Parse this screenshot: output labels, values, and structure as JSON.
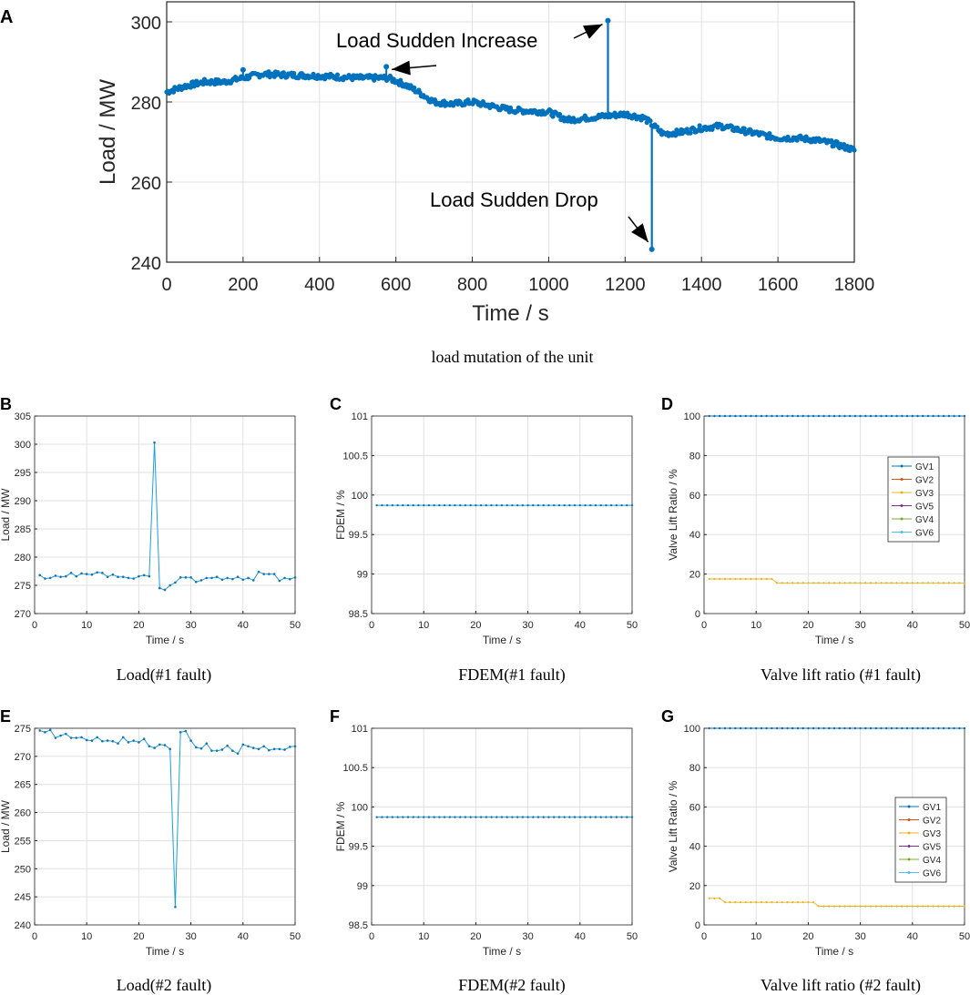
{
  "captions": {
    "a": "load mutation of the unit",
    "b": "Load(#1 fault)",
    "c": "FDEM(#1 fault)",
    "d": "Valve lift ratio (#1 fault)",
    "e": "Load(#2 fault)",
    "f": "FDEM(#2 fault)",
    "g": "Valve lift ratio (#2 fault)"
  },
  "colors": {
    "main": "#0072BD",
    "load_small": "#1f9fe0",
    "fdem": "#1f9fe0",
    "grid": "#e1e1e1",
    "gv": [
      "#0072BD",
      "#D95319",
      "#EDB120",
      "#7E2F8E",
      "#77AC30",
      "#4DBEEE"
    ]
  },
  "chart_data": [
    {
      "id": "A",
      "type": "line",
      "panel_label": "A",
      "title": "",
      "xlabel": "Time / s",
      "ylabel": "Load / MW",
      "xlim": [
        0,
        1800
      ],
      "ylim": [
        240,
        305
      ],
      "xticks": [
        0,
        200,
        400,
        600,
        800,
        1000,
        1200,
        1400,
        1600,
        1800
      ],
      "yticks": [
        240,
        260,
        280,
        300
      ],
      "grid": true,
      "series": [
        {
          "name": "Load",
          "trend": [
            [
              0,
              282.5
            ],
            [
              50,
              284
            ],
            [
              100,
              285
            ],
            [
              150,
              285
            ],
            [
              200,
              286
            ],
            [
              250,
              287
            ],
            [
              300,
              286.8
            ],
            [
              400,
              286.5
            ],
            [
              500,
              286
            ],
            [
              580,
              286
            ],
            [
              620,
              284.5
            ],
            [
              650,
              283
            ],
            [
              700,
              280
            ],
            [
              750,
              279.5
            ],
            [
              800,
              280
            ],
            [
              850,
              279
            ],
            [
              900,
              278
            ],
            [
              1000,
              277.5
            ],
            [
              1050,
              275.5
            ],
            [
              1100,
              276
            ],
            [
              1150,
              276.5
            ],
            [
              1200,
              277
            ],
            [
              1250,
              276
            ],
            [
              1300,
              272
            ],
            [
              1350,
              272.5
            ],
            [
              1400,
              273.5
            ],
            [
              1450,
              274
            ],
            [
              1500,
              273
            ],
            [
              1550,
              272
            ],
            [
              1600,
              271
            ],
            [
              1650,
              271
            ],
            [
              1700,
              270.5
            ],
            [
              1750,
              269.5
            ],
            [
              1800,
              268
            ]
          ],
          "spikes": [
            [
              1155,
              300.3
            ],
            [
              1270,
              243.2
            ]
          ],
          "outliers": [
            [
              200,
              288
            ],
            [
              575,
              288.8
            ]
          ]
        }
      ],
      "annotations": [
        {
          "text": "Load Sudden Increase",
          "x": 1155,
          "y": 300.3
        },
        {
          "text": "",
          "x": 575,
          "y": 288.8
        },
        {
          "text": "Load Sudden Drop",
          "x": 1270,
          "y": 243.2
        }
      ]
    },
    {
      "id": "B",
      "type": "line",
      "panel_label": "B",
      "xlabel": "Time / s",
      "ylabel": "Load / MW",
      "xlim": [
        0,
        50
      ],
      "ylim": [
        270,
        305
      ],
      "xticks": [
        0,
        10,
        20,
        30,
        40,
        50
      ],
      "yticks": [
        270,
        275,
        280,
        285,
        290,
        295,
        300,
        305
      ],
      "grid": true,
      "series": [
        {
          "name": "Load",
          "x": [
            1,
            2,
            3,
            4,
            5,
            6,
            7,
            8,
            9,
            10,
            11,
            12,
            13,
            14,
            15,
            16,
            17,
            18,
            19,
            20,
            21,
            22,
            23,
            24,
            25,
            26,
            27,
            28,
            29,
            30,
            31,
            32,
            33,
            34,
            35,
            36,
            37,
            38,
            39,
            40,
            41,
            42,
            43,
            44,
            45,
            46,
            47,
            48,
            49,
            50
          ],
          "values": [
            276.8,
            276.2,
            276.3,
            276.7,
            276.5,
            276.6,
            277.2,
            276.6,
            277.1,
            277.0,
            276.9,
            277.3,
            277.2,
            276.5,
            276.9,
            276.5,
            276.5,
            276.3,
            276.2,
            276.6,
            276.8,
            276.6,
            300.3,
            274.5,
            274.2,
            275.0,
            275.5,
            276.4,
            276.4,
            276.4,
            275.6,
            275.9,
            276.3,
            276.3,
            276.5,
            276.0,
            276.3,
            276.1,
            276.5,
            276.0,
            276.3,
            275.9,
            277.4,
            277.0,
            277.0,
            277.0,
            275.8,
            276.3,
            276.1,
            276.4
          ]
        }
      ]
    },
    {
      "id": "C",
      "type": "line",
      "panel_label": "C",
      "xlabel": "Time / s",
      "ylabel": "FDEM / %",
      "xlim": [
        0,
        50
      ],
      "ylim": [
        98.5,
        101
      ],
      "xticks": [
        0,
        10,
        20,
        30,
        40,
        50
      ],
      "yticks": [
        98.5,
        99,
        99.5,
        100,
        100.5,
        101
      ],
      "ytick_labels": [
        "98.5",
        "99",
        "99.5",
        "100",
        "100.5",
        "101"
      ],
      "grid": true,
      "series": [
        {
          "name": "FDEM",
          "x_range": [
            1,
            50
          ],
          "constant": 99.87
        }
      ]
    },
    {
      "id": "D",
      "type": "line",
      "panel_label": "D",
      "xlabel": "Time / s",
      "ylabel": "Valve Lift Ratio / %",
      "xlim": [
        0,
        50
      ],
      "ylim": [
        0,
        100
      ],
      "xticks": [
        0,
        10,
        20,
        30,
        40,
        50
      ],
      "yticks": [
        0,
        20,
        40,
        60,
        80,
        100
      ],
      "grid": true,
      "legend_position": "right",
      "series": [
        {
          "name": "GV1",
          "segments": [
            [
              1,
              50,
              100
            ]
          ]
        },
        {
          "name": "GV2",
          "segments": [
            [
              1,
              50,
              100
            ]
          ]
        },
        {
          "name": "GV3",
          "segments": [
            [
              1,
              13,
              17.5
            ],
            [
              14,
              50,
              15.5
            ]
          ]
        },
        {
          "name": "GV5",
          "segments": [
            [
              1,
              50,
              100
            ]
          ]
        },
        {
          "name": "GV4",
          "segments": [
            [
              1,
              50,
              100
            ]
          ]
        },
        {
          "name": "GV6",
          "segments": [
            [
              1,
              50,
              100
            ]
          ]
        }
      ]
    },
    {
      "id": "E",
      "type": "line",
      "panel_label": "E",
      "xlabel": "Time / s",
      "ylabel": "Load / MW",
      "xlim": [
        0,
        50
      ],
      "ylim": [
        240,
        275
      ],
      "xticks": [
        0,
        10,
        20,
        30,
        40,
        50
      ],
      "yticks": [
        240,
        245,
        250,
        255,
        260,
        265,
        270,
        275
      ],
      "grid": true,
      "series": [
        {
          "name": "Load",
          "x": [
            1,
            2,
            3,
            4,
            5,
            6,
            7,
            8,
            9,
            10,
            11,
            12,
            13,
            14,
            15,
            16,
            17,
            18,
            19,
            20,
            21,
            22,
            23,
            24,
            25,
            26,
            27,
            28,
            29,
            30,
            31,
            32,
            33,
            34,
            35,
            36,
            37,
            38,
            39,
            40,
            41,
            42,
            43,
            44,
            45,
            46,
            47,
            48,
            49,
            50
          ],
          "values": [
            274.6,
            274.3,
            274.7,
            273.3,
            273.7,
            274.0,
            273.3,
            273.3,
            273.4,
            272.9,
            272.8,
            273.4,
            272.7,
            272.8,
            272.7,
            272.3,
            273.4,
            272.5,
            272.8,
            272.5,
            273.1,
            271.8,
            271.5,
            272.1,
            272.0,
            271.3,
            243.2,
            274.3,
            274.5,
            272.8,
            271.6,
            271.4,
            272.3,
            271.0,
            271.0,
            271.2,
            271.9,
            271.0,
            270.5,
            272.1,
            271.8,
            271.5,
            271.3,
            271.8,
            271.1,
            271.3,
            271.3,
            271.2,
            271.7,
            271.8
          ]
        }
      ]
    },
    {
      "id": "F",
      "type": "line",
      "panel_label": "F",
      "xlabel": "Time / s",
      "ylabel": "FDEM / %",
      "xlim": [
        0,
        50
      ],
      "ylim": [
        98.5,
        101
      ],
      "xticks": [
        0,
        10,
        20,
        30,
        40,
        50
      ],
      "yticks": [
        98.5,
        99,
        99.5,
        100,
        100.5,
        101
      ],
      "ytick_labels": [
        "98.5",
        "99",
        "99.5",
        "100",
        "100.5",
        "101"
      ],
      "grid": true,
      "series": [
        {
          "name": "FDEM",
          "x_range": [
            1,
            50
          ],
          "constant": 99.87
        }
      ]
    },
    {
      "id": "G",
      "type": "line",
      "panel_label": "G",
      "xlabel": "Time / s",
      "ylabel": "Valve Lift Ratio / %",
      "xlim": [
        0,
        50
      ],
      "ylim": [
        0,
        100
      ],
      "xticks": [
        0,
        10,
        20,
        30,
        40,
        50
      ],
      "yticks": [
        0,
        20,
        40,
        60,
        80,
        100
      ],
      "grid": true,
      "legend_position": "right",
      "series": [
        {
          "name": "GV1",
          "segments": [
            [
              1,
              50,
              100
            ]
          ]
        },
        {
          "name": "GV2",
          "segments": [
            [
              1,
              50,
              100
            ]
          ]
        },
        {
          "name": "GV3",
          "segments": [
            [
              1,
              3,
              13.5
            ],
            [
              4,
              21,
              11.5
            ],
            [
              22,
              50,
              9.5
            ]
          ]
        },
        {
          "name": "GV5",
          "segments": [
            [
              1,
              50,
              100
            ]
          ]
        },
        {
          "name": "GV4",
          "segments": [
            [
              1,
              50,
              100
            ]
          ]
        },
        {
          "name": "GV6",
          "segments": [
            [
              1,
              50,
              100
            ]
          ]
        }
      ]
    }
  ]
}
